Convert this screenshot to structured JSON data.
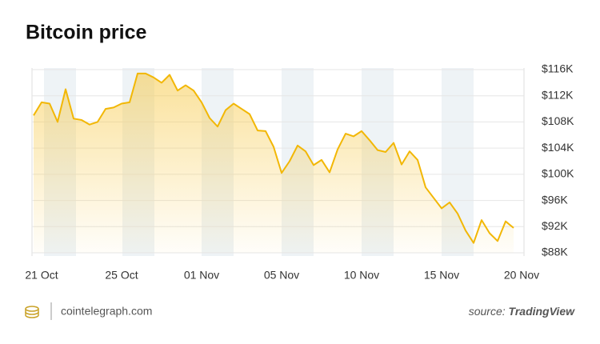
{
  "chart_data": {
    "type": "line",
    "title": "Bitcoin price",
    "categories": [
      "21 Oct",
      null,
      null,
      null,
      null,
      null,
      null,
      null,
      null,
      null,
      "25 Oct",
      null,
      null,
      null,
      null,
      null,
      null,
      null,
      null,
      null,
      "01 Nov",
      null,
      null,
      null,
      null,
      null,
      null,
      null,
      null,
      null,
      "05 Nov",
      null,
      null,
      null,
      null,
      null,
      null,
      null,
      null,
      null,
      "10 Nov",
      null,
      null,
      null,
      null,
      null,
      null,
      null,
      null,
      null,
      "15 Nov",
      null,
      null,
      null,
      null,
      null,
      null,
      null,
      null,
      null,
      "20 Nov"
    ],
    "values": [
      109.0,
      111.0,
      110.8,
      108.0,
      113.0,
      108.5,
      108.3,
      107.6,
      108.0,
      110.0,
      110.2,
      110.8,
      111.0,
      115.4,
      115.4,
      114.8,
      114.0,
      115.2,
      112.8,
      113.6,
      112.8,
      111.0,
      108.6,
      107.3,
      109.8,
      110.8,
      110.0,
      109.2,
      106.7,
      106.6,
      104.2,
      100.2,
      102.0,
      104.4,
      103.5,
      101.4,
      102.2,
      100.3,
      103.8,
      106.2,
      105.8,
      106.6,
      105.2,
      103.7,
      103.4,
      104.8,
      101.5,
      103.5,
      102.2,
      98.0,
      96.4,
      94.8,
      95.7,
      94.0,
      91.4,
      89.5,
      93.0,
      91.0,
      89.8,
      92.8,
      91.8
    ],
    "color": "#f2b705",
    "ylim": [
      88,
      116
    ],
    "yticks": [
      {
        "value": 88,
        "label": "$88K"
      },
      {
        "value": 92,
        "label": "$92K"
      },
      {
        "value": 96,
        "label": "$96K"
      },
      {
        "value": 100,
        "label": "$100K"
      },
      {
        "value": 104,
        "label": "$104K"
      },
      {
        "value": 108,
        "label": "$108K"
      },
      {
        "value": 112,
        "label": "$112K"
      },
      {
        "value": 116,
        "label": "$116K"
      }
    ],
    "grid": true
  },
  "footer": {
    "site": "cointelegraph.com",
    "source_prefix": "source:",
    "source": "TradingView"
  }
}
